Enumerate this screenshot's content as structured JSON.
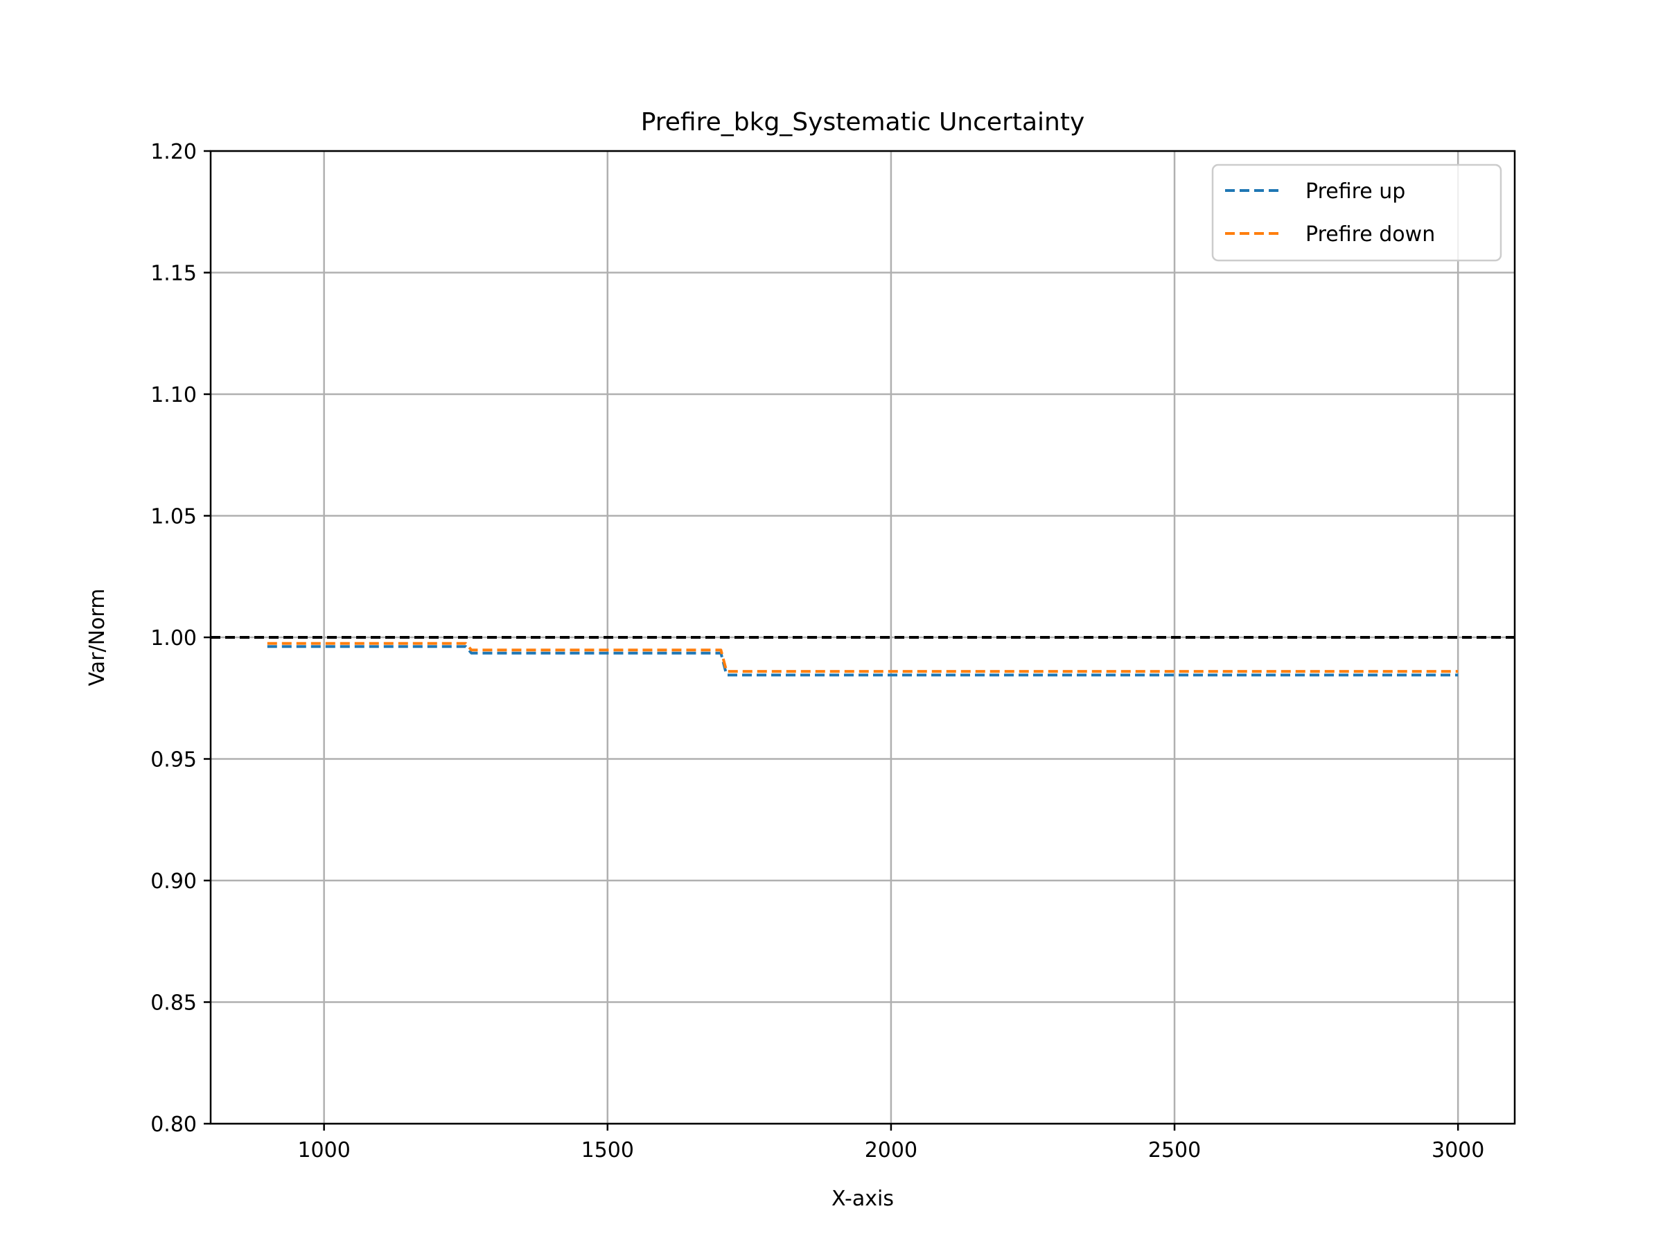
{
  "chart_data": {
    "type": "line",
    "title": "Prefire_bkg_Systematic Uncertainty",
    "xlabel": "X-axis",
    "ylabel": "Var/Norm",
    "xlim": [
      800,
      3100
    ],
    "ylim": [
      0.8,
      1.2
    ],
    "x_ticks": [
      1000,
      1500,
      2000,
      2500,
      3000
    ],
    "x_tick_labels": [
      "1000",
      "1500",
      "2000",
      "2500",
      "3000"
    ],
    "y_ticks": [
      0.8,
      0.85,
      0.9,
      0.95,
      1.0,
      1.05,
      1.1,
      1.15,
      1.2
    ],
    "y_tick_labels": [
      "0.80",
      "0.85",
      "0.90",
      "0.95",
      "1.00",
      "1.05",
      "1.10",
      "1.15",
      "1.20"
    ],
    "grid": true,
    "legend_position": "top-right",
    "reference_line": {
      "y": 1.0,
      "color": "#000000",
      "style": "dashed"
    },
    "series": [
      {
        "name": "Prefire up",
        "color": "#1f77b4",
        "style": "dashed",
        "x": [
          900,
          1250,
          1260,
          1700,
          1710,
          3000
        ],
        "y": [
          0.9962,
          0.9962,
          0.9935,
          0.9935,
          0.9845,
          0.9845
        ]
      },
      {
        "name": "Prefire down",
        "color": "#ff7f0e",
        "style": "dashed",
        "x": [
          900,
          1250,
          1260,
          1700,
          1710,
          3000
        ],
        "y": [
          0.9975,
          0.9975,
          0.9948,
          0.9948,
          0.986,
          0.986
        ]
      }
    ]
  }
}
